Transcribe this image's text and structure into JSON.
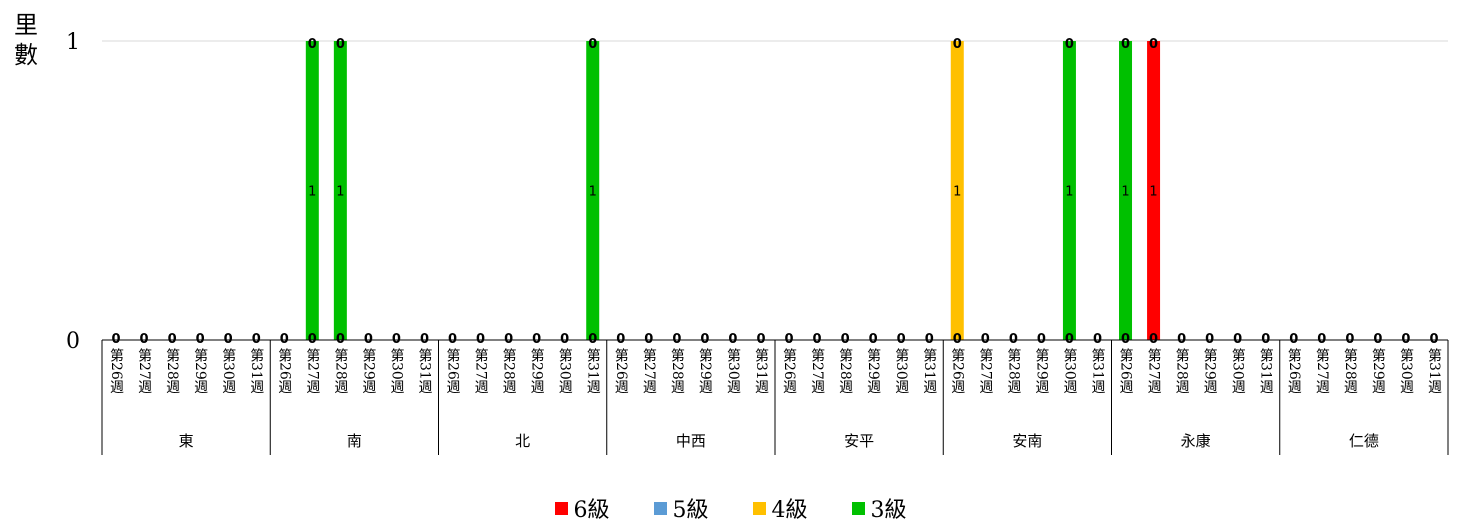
{
  "chart_data": {
    "type": "bar",
    "stacked": true,
    "ylabel": "里數",
    "ylim": [
      0,
      1
    ],
    "y_ticks": [
      "0",
      "1"
    ],
    "grid": true,
    "legend_position": "bottom",
    "groups": [
      "東",
      "南",
      "北",
      "中西",
      "安平",
      "安南",
      "永康",
      "仁德"
    ],
    "weeks": [
      "第26週",
      "第27週",
      "第28週",
      "第29週",
      "第30週",
      "第31週"
    ],
    "series": [
      {
        "name": "6級",
        "color": "#FF0000",
        "values": [
          [
            0,
            0,
            0,
            0,
            0,
            0
          ],
          [
            0,
            0,
            0,
            0,
            0,
            0
          ],
          [
            0,
            0,
            0,
            0,
            0,
            0
          ],
          [
            0,
            0,
            0,
            0,
            0,
            0
          ],
          [
            0,
            0,
            0,
            0,
            0,
            0
          ],
          [
            0,
            0,
            0,
            0,
            0,
            0
          ],
          [
            0,
            1,
            0,
            0,
            0,
            0
          ],
          [
            0,
            0,
            0,
            0,
            0,
            0
          ]
        ]
      },
      {
        "name": "5級",
        "color": "#5B9BD5",
        "values": [
          [
            0,
            0,
            0,
            0,
            0,
            0
          ],
          [
            0,
            0,
            0,
            0,
            0,
            0
          ],
          [
            0,
            0,
            0,
            0,
            0,
            0
          ],
          [
            0,
            0,
            0,
            0,
            0,
            0
          ],
          [
            0,
            0,
            0,
            0,
            0,
            0
          ],
          [
            0,
            0,
            0,
            0,
            0,
            0
          ],
          [
            0,
            0,
            0,
            0,
            0,
            0
          ],
          [
            0,
            0,
            0,
            0,
            0,
            0
          ]
        ]
      },
      {
        "name": "4級",
        "color": "#FFC000",
        "values": [
          [
            0,
            0,
            0,
            0,
            0,
            0
          ],
          [
            0,
            0,
            0,
            0,
            0,
            0
          ],
          [
            0,
            0,
            0,
            0,
            0,
            0
          ],
          [
            0,
            0,
            0,
            0,
            0,
            0
          ],
          [
            0,
            0,
            0,
            0,
            0,
            0
          ],
          [
            1,
            0,
            0,
            0,
            0,
            0
          ],
          [
            0,
            0,
            0,
            0,
            0,
            0
          ],
          [
            0,
            0,
            0,
            0,
            0,
            0
          ]
        ]
      },
      {
        "name": "3級",
        "color": "#00C000",
        "values": [
          [
            0,
            0,
            0,
            0,
            0,
            0
          ],
          [
            0,
            1,
            1,
            0,
            0,
            0
          ],
          [
            0,
            0,
            0,
            0,
            0,
            1
          ],
          [
            0,
            0,
            0,
            0,
            0,
            0
          ],
          [
            0,
            0,
            0,
            0,
            0,
            0
          ],
          [
            0,
            0,
            0,
            0,
            1,
            0
          ],
          [
            1,
            0,
            0,
            0,
            0,
            0
          ],
          [
            0,
            0,
            0,
            0,
            0,
            0
          ]
        ]
      }
    ]
  }
}
